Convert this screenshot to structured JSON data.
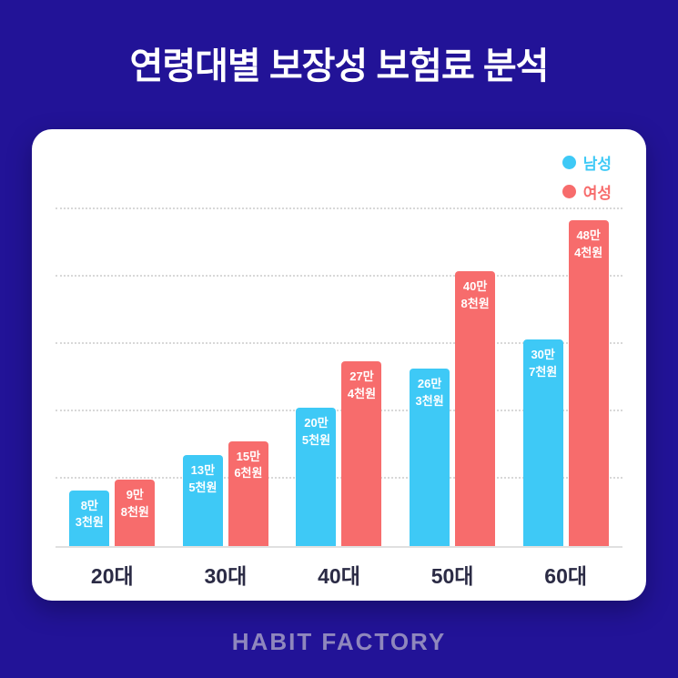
{
  "page": {
    "title": "연령대별 보장성 보험료 분석",
    "footer": "HABIT FACTORY"
  },
  "colors": {
    "background": "#221397",
    "card": "#FFFFFF",
    "male": "#3EC9F6",
    "female": "#F76C6C",
    "axis_label": "#2B2B45",
    "footer_text": "#8F87BD"
  },
  "chart_data": {
    "type": "bar",
    "title": "연령대별 보장성 보험료 분석",
    "categories": [
      "20대",
      "30대",
      "40대",
      "50대",
      "60대"
    ],
    "series": [
      {
        "name": "남성",
        "color": "#3EC9F6",
        "values": [
          83000,
          135000,
          205000,
          263000,
          307000
        ],
        "labels": [
          [
            "8만",
            "3천원"
          ],
          [
            "13만",
            "5천원"
          ],
          [
            "20만",
            "5천원"
          ],
          [
            "26만",
            "3천원"
          ],
          [
            "30만",
            "7천원"
          ]
        ]
      },
      {
        "name": "여성",
        "color": "#F76C6C",
        "values": [
          98000,
          156000,
          274000,
          408000,
          484000
        ],
        "labels": [
          [
            "9만",
            "8천원"
          ],
          [
            "15만",
            "6천원"
          ],
          [
            "27만",
            "4천원"
          ],
          [
            "40만",
            "8천원"
          ],
          [
            "48만",
            "4천원"
          ]
        ]
      }
    ],
    "ylim": [
      0,
      500000
    ],
    "gridlines": 5,
    "grid": true,
    "legend_position": "top-right",
    "xlabel": "",
    "ylabel": ""
  }
}
